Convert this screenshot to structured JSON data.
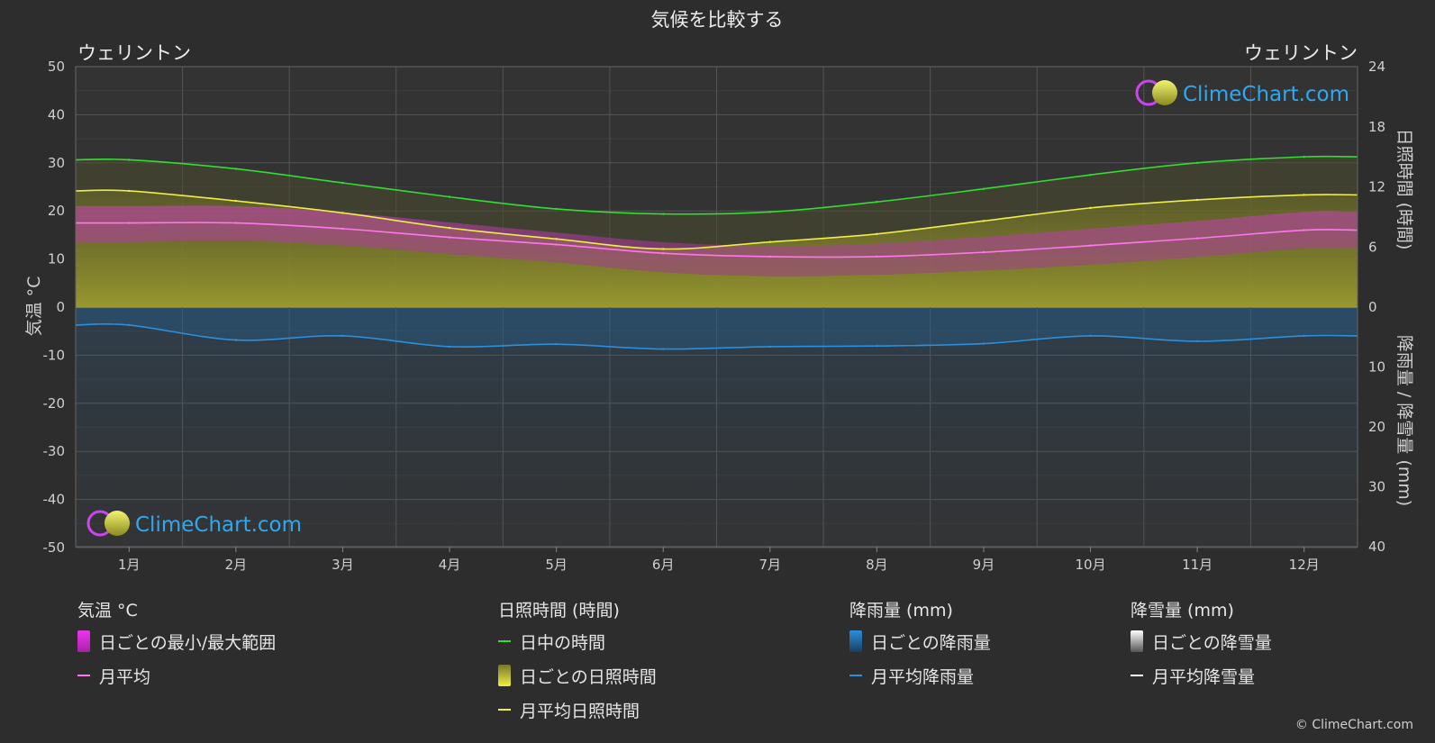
{
  "title": "気候を比較する",
  "location_left": "ウェリントン",
  "location_right": "ウェリントン",
  "watermark": "ClimeChart.com",
  "copyright": "© ClimeChart.com",
  "legend": {
    "temp_head": "気温 °C",
    "temp_range": "日ごとの最小/最大範囲",
    "temp_avg": "月平均",
    "sun_head": "日照時間 (時間)",
    "daylight": "日中の時間",
    "sun_daily": "日ごとの日照時間",
    "sun_avg": "月平均日照時間",
    "rain_head": "降雨量 (mm)",
    "rain_daily": "日ごとの降雨量",
    "rain_avg": "月平均降雨量",
    "snow_head": "降雪量 (mm)",
    "snow_daily": "日ごとの降雪量",
    "snow_avg": "月平均降雪量"
  },
  "colors": {
    "background": "#2d2d2d",
    "daylight": "#33dd33",
    "sunshine": "#eeee44",
    "sunshine_fill": "#8a8a2a",
    "temp_avg": "#ff77ee",
    "temp_range": "#cc33bb",
    "rain": "#2a8fdd",
    "snow": "#ffffff",
    "grid": "#555555"
  },
  "chart_data": {
    "type": "line",
    "categories": [
      "1月",
      "2月",
      "3月",
      "4月",
      "5月",
      "6月",
      "7月",
      "8月",
      "9月",
      "10月",
      "11月",
      "12月"
    ],
    "y_left": {
      "label": "気温 °C",
      "range": [
        -50,
        50
      ],
      "ticks": [
        50,
        40,
        30,
        20,
        10,
        0,
        -10,
        -20,
        -30,
        -40,
        -50
      ]
    },
    "y_right_top": {
      "label": "日照時間 (時間)",
      "range": [
        0,
        24
      ],
      "ticks": [
        24,
        18,
        12,
        6,
        0
      ]
    },
    "y_right_bottom": {
      "label": "降雨量 / 降雪量 (mm)",
      "range": [
        0,
        40
      ],
      "ticks": [
        10,
        20,
        30,
        40
      ]
    },
    "series": [
      {
        "name": "日中の時間",
        "unit": "hours",
        "values": [
          14.7,
          13.8,
          12.4,
          11.0,
          9.8,
          9.3,
          9.5,
          10.5,
          11.8,
          13.2,
          14.4,
          15.0
        ]
      },
      {
        "name": "月平均日照時間",
        "unit": "hours",
        "values": [
          11.6,
          10.6,
          9.4,
          7.9,
          6.8,
          5.8,
          6.5,
          7.3,
          8.6,
          9.9,
          10.7,
          11.2
        ]
      },
      {
        "name": "月平均",
        "unit": "°C",
        "values": [
          17.5,
          17.5,
          16.3,
          14.5,
          13.0,
          11.2,
          10.5,
          10.5,
          11.4,
          12.8,
          14.3,
          16.0
        ]
      },
      {
        "name": "月平均降雨量",
        "unit": "mm",
        "values": [
          3.0,
          5.5,
          4.8,
          6.6,
          6.2,
          7.0,
          6.6,
          6.5,
          6.1,
          4.8,
          5.7,
          4.8
        ]
      },
      {
        "name": "日ごとの最小/最大範囲",
        "unit": "°C",
        "min": [
          13.5,
          13.8,
          12.8,
          11.0,
          9.3,
          7.2,
          6.4,
          6.7,
          7.6,
          8.8,
          10.4,
          12.2
        ],
        "max": [
          21.0,
          21.0,
          19.7,
          17.6,
          15.5,
          13.5,
          12.7,
          13.2,
          14.6,
          16.3,
          17.9,
          19.8
        ]
      }
    ],
    "grid": true
  }
}
